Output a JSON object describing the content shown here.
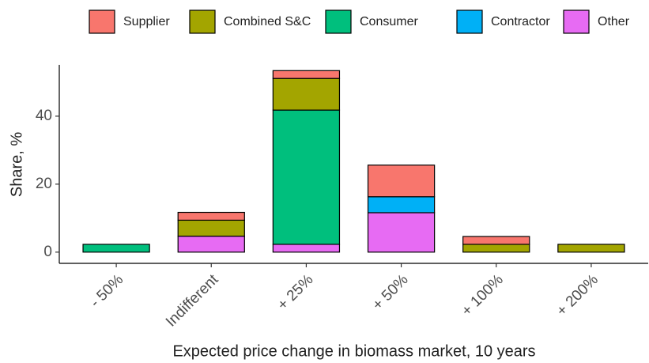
{
  "chart_data": {
    "type": "stacked_bar",
    "x_label": "Expected price change in biomass market, 10 years",
    "y_label": "Share, %",
    "categories": [
      "- 50%",
      "Indifferent",
      "+ 25%",
      "+ 50%",
      "+ 100%",
      "+ 200%"
    ],
    "series": [
      {
        "name": "Supplier",
        "color": "#F8766D",
        "values": [
          0,
          2.3,
          2.3,
          9.3,
          2.3,
          0
        ]
      },
      {
        "name": "Combined S&C",
        "color": "#A3A500",
        "values": [
          0,
          4.7,
          9.3,
          0,
          2.3,
          2.3
        ]
      },
      {
        "name": "Consumer",
        "color": "#00BF7D",
        "values": [
          2.3,
          0,
          39.5,
          0,
          0,
          0
        ]
      },
      {
        "name": "Contractor",
        "color": "#00B0F6",
        "values": [
          0,
          0,
          0,
          4.7,
          0,
          0
        ]
      },
      {
        "name": "Other",
        "color": "#E76BF3",
        "values": [
          0,
          4.7,
          2.3,
          11.6,
          0,
          0
        ]
      }
    ],
    "ylim": [
      -3.3,
      55.1
    ],
    "yticks": [
      0,
      20,
      40
    ],
    "legend": "top"
  }
}
